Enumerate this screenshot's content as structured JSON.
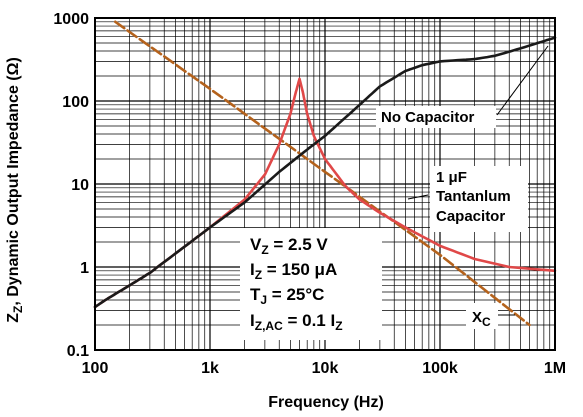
{
  "chart_data": {
    "type": "line",
    "xlabel": "Frequency (Hz)",
    "ylabel": "Z₂, Dynamic Output Impedance (Ω)",
    "ylabel_parts": {
      "main": "Z",
      "sub": "Z",
      "rest": ", Dynamic Output Impedance (Ω)"
    },
    "x_scale": "log",
    "y_scale": "log",
    "xlim": [
      100,
      1000000
    ],
    "ylim": [
      0.1,
      1000
    ],
    "x_ticks": [
      {
        "value": 100,
        "label": "100"
      },
      {
        "value": 1000,
        "label": "1k"
      },
      {
        "value": 10000,
        "label": "10k"
      },
      {
        "value": 100000,
        "label": "100k"
      },
      {
        "value": 1000000,
        "label": "1M"
      }
    ],
    "y_ticks": [
      {
        "value": 0.1,
        "label": "0.1"
      },
      {
        "value": 1,
        "label": "1"
      },
      {
        "value": 10,
        "label": "10"
      },
      {
        "value": 100,
        "label": "100"
      },
      {
        "value": 1000,
        "label": "1000"
      }
    ],
    "grid": true,
    "series": [
      {
        "key": "xc",
        "color": "#b4621c",
        "dash": true,
        "points": [
          [
            150,
            900
          ],
          [
            1000,
            140
          ],
          [
            10000,
            14
          ],
          [
            100000,
            1.4
          ],
          [
            600000,
            0.2
          ]
        ]
      },
      {
        "key": "cap",
        "color": "#e04848",
        "dash": false,
        "points": [
          [
            100,
            0.33
          ],
          [
            130,
            0.42
          ],
          [
            200,
            0.6
          ],
          [
            300,
            0.85
          ],
          [
            500,
            1.45
          ],
          [
            1000,
            3.0
          ],
          [
            2000,
            6.5
          ],
          [
            3000,
            13
          ],
          [
            4000,
            30
          ],
          [
            5000,
            70
          ],
          [
            5600,
            130
          ],
          [
            6000,
            185
          ],
          [
            6400,
            130
          ],
          [
            7000,
            70
          ],
          [
            8000,
            38
          ],
          [
            10000,
            20
          ],
          [
            15000,
            9.5
          ],
          [
            20000,
            6.5
          ],
          [
            30000,
            4.5
          ],
          [
            50000,
            3.0
          ],
          [
            100000,
            1.8
          ],
          [
            200000,
            1.25
          ],
          [
            400000,
            1.0
          ],
          [
            1000000,
            0.9
          ]
        ]
      },
      {
        "key": "nocap",
        "color": "#1a1a1a",
        "dash": false,
        "points": [
          [
            100,
            0.33
          ],
          [
            130,
            0.42
          ],
          [
            200,
            0.6
          ],
          [
            300,
            0.85
          ],
          [
            500,
            1.45
          ],
          [
            1000,
            3.0
          ],
          [
            2000,
            6.0
          ],
          [
            4000,
            14
          ],
          [
            7000,
            26
          ],
          [
            10000,
            38
          ],
          [
            20000,
            90
          ],
          [
            30000,
            150
          ],
          [
            50000,
            230
          ],
          [
            70000,
            270
          ],
          [
            100000,
            300
          ],
          [
            200000,
            320
          ],
          [
            300000,
            350
          ],
          [
            500000,
            430
          ],
          [
            1000000,
            580
          ]
        ]
      }
    ],
    "annotations": {
      "no_cap": "No Capacitor",
      "cap_line1_prefix": "1 μ",
      "cap_line1_unit": "F",
      "cap_line2": "Tantanlum",
      "cap_line3": "Capacitor",
      "xc_main": "X",
      "xc_sub": "C"
    },
    "conditions": {
      "vz": {
        "main": "V",
        "sub": "Z",
        "rest": " = 2.5 V"
      },
      "iz": {
        "main": "I",
        "sub": "Z",
        "rest": " = 150 μA"
      },
      "tj": {
        "main": "T",
        "sub": "J",
        "rest": " = 25°C"
      },
      "izac": {
        "main": "I",
        "sub": "Z,AC",
        "rest": " = 0.1 I",
        "sub2": "Z"
      }
    }
  }
}
